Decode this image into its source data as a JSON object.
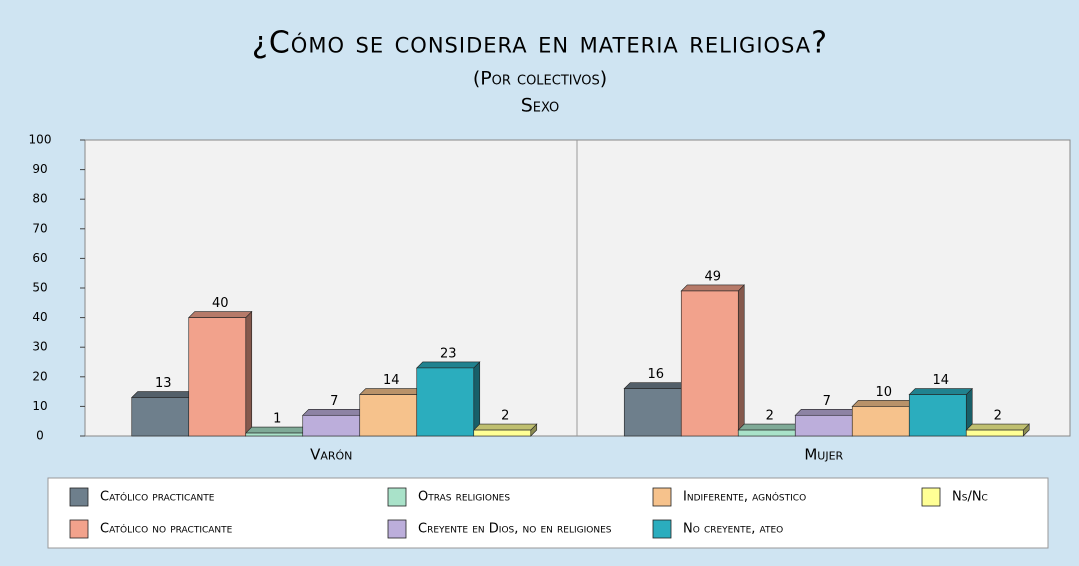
{
  "chart_data": {
    "type": "bar",
    "title": "¿Cómo se considera en materia religiosa?",
    "subtitle": "(Por colectivos)",
    "x_label": "Sexo",
    "categories": [
      "Varón",
      "Mujer"
    ],
    "series": [
      {
        "name": "Católico practicante",
        "color": "#6e7f8c",
        "values": [
          13,
          16
        ]
      },
      {
        "name": "Católico no practicante",
        "color": "#f2a28c",
        "values": [
          40,
          49
        ]
      },
      {
        "name": "Otras religiones",
        "color": "#a9e2c9",
        "values": [
          1,
          2
        ]
      },
      {
        "name": "Creyente en Dios, no en religiones",
        "color": "#bcaedb",
        "values": [
          7,
          7
        ]
      },
      {
        "name": "Indiferente, agnóstico",
        "color": "#f6c28c",
        "values": [
          14,
          10
        ]
      },
      {
        "name": "No creyente, ateo",
        "color": "#2badbe",
        "values": [
          23,
          14
        ]
      },
      {
        "name": "Ns/Nc",
        "color": "#ffff95",
        "values": [
          2,
          2
        ]
      }
    ],
    "ylim": [
      0,
      100
    ],
    "yticks": [
      0,
      10,
      20,
      30,
      40,
      50,
      60,
      70,
      80,
      90,
      100
    ],
    "grid": false
  }
}
